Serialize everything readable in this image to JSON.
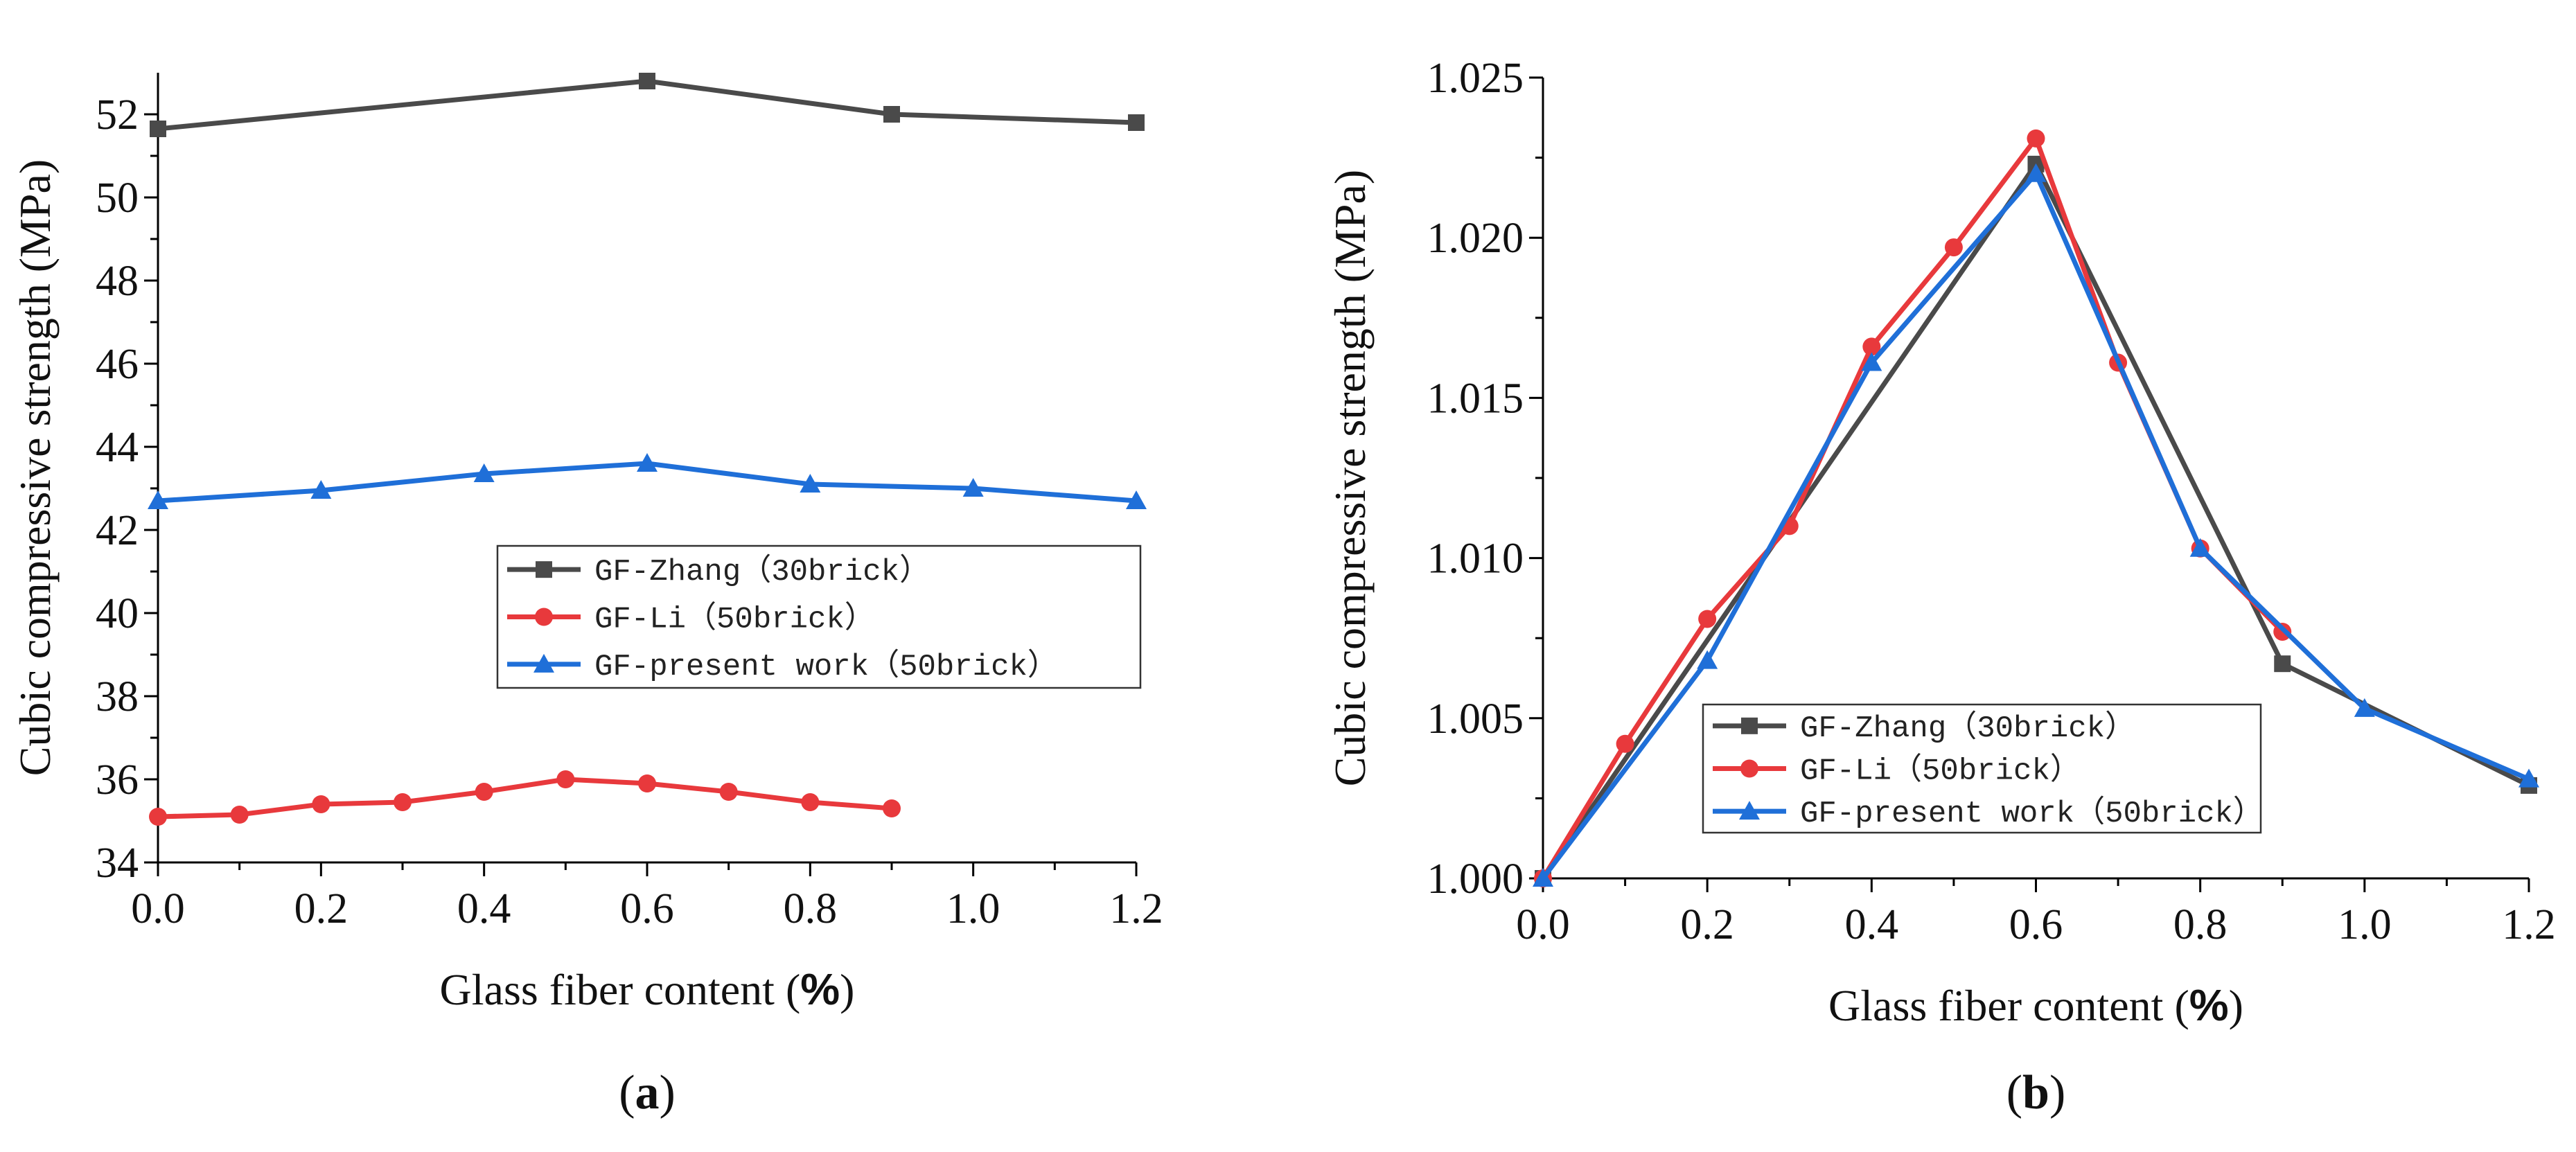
{
  "colors": {
    "zhang": "#4a4a4a",
    "li": "#e8393c",
    "present": "#1f6fd8"
  },
  "chart_data": [
    {
      "type": "line",
      "panel_label": "a",
      "xlabel_prefix": "Glass fiber content (",
      "xlabel_unit": "%",
      "xlabel_suffix": ")",
      "ylabel": "Cubic compressive strength (MPa)",
      "xlim": [
        0.0,
        1.2
      ],
      "ylim": [
        34,
        53
      ],
      "xticks": [
        0.0,
        0.2,
        0.4,
        0.6,
        0.8,
        1.0,
        1.2
      ],
      "xtick_labels": [
        "0.0",
        "0.2",
        "0.4",
        "0.6",
        "0.8",
        "1.0",
        "1.2"
      ],
      "yticks": [
        34,
        36,
        38,
        40,
        42,
        44,
        46,
        48,
        50,
        52
      ],
      "ytick_labels": [
        "34",
        "36",
        "38",
        "40",
        "42",
        "44",
        "46",
        "48",
        "50",
        "52"
      ],
      "legend_position": "center-right",
      "series": [
        {
          "name": "GF-Zhang（30brick）",
          "color_key": "zhang",
          "marker": "square",
          "x": [
            0.0,
            0.6,
            0.9,
            1.2
          ],
          "y": [
            51.65,
            52.8,
            52.0,
            51.8
          ]
        },
        {
          "name": "GF-Li（50brick）",
          "color_key": "li",
          "marker": "circle",
          "x": [
            0.0,
            0.1,
            0.2,
            0.3,
            0.4,
            0.5,
            0.6,
            0.7,
            0.8,
            0.9
          ],
          "y": [
            35.1,
            35.15,
            35.4,
            35.45,
            35.7,
            36.0,
            35.9,
            35.7,
            35.45,
            35.3
          ]
        },
        {
          "name": "GF-present work（50brick）",
          "color_key": "present",
          "marker": "triangle",
          "x": [
            0.0,
            0.2,
            0.4,
            0.6,
            0.8,
            1.0,
            1.2
          ],
          "y": [
            42.7,
            42.95,
            43.35,
            43.6,
            43.1,
            43.0,
            42.7
          ]
        }
      ]
    },
    {
      "type": "line",
      "panel_label": "b",
      "xlabel_prefix": "Glass fiber content (",
      "xlabel_unit": "%",
      "xlabel_suffix": ")",
      "ylabel": "Cubic compressive strength (MPa)",
      "xlim": [
        0.0,
        1.2
      ],
      "ylim": [
        1.0,
        1.025
      ],
      "xticks": [
        0.0,
        0.2,
        0.4,
        0.6,
        0.8,
        1.0,
        1.2
      ],
      "xtick_labels": [
        "0.0",
        "0.2",
        "0.4",
        "0.6",
        "0.8",
        "1.0",
        "1.2"
      ],
      "yticks": [
        1.0,
        1.005,
        1.01,
        1.015,
        1.02,
        1.025
      ],
      "ytick_labels": [
        "1.000",
        "1.005",
        "1.010",
        "1.015",
        "1.020",
        "1.025"
      ],
      "legend_position": "bottom-left",
      "series": [
        {
          "name": "GF-Zhang（30brick）",
          "color_key": "zhang",
          "marker": "square",
          "x": [
            0.0,
            0.6,
            0.9,
            1.2
          ],
          "y": [
            1.0,
            1.0223,
            1.0067,
            1.0029
          ]
        },
        {
          "name": "GF-Li（50brick）",
          "color_key": "li",
          "marker": "circle",
          "x": [
            0.0,
            0.1,
            0.2,
            0.3,
            0.4,
            0.5,
            0.6,
            0.7,
            0.8,
            0.9
          ],
          "y": [
            1.0,
            1.0042,
            1.0081,
            1.011,
            1.0166,
            1.0197,
            1.0231,
            1.0161,
            1.0103,
            1.0077
          ]
        },
        {
          "name": "GF-present work（50brick）",
          "color_key": "present",
          "marker": "triangle",
          "x": [
            0.0,
            0.2,
            0.4,
            0.6,
            0.8,
            1.0,
            1.2
          ],
          "y": [
            1.0,
            1.0068,
            1.0161,
            1.022,
            1.0103,
            1.0053,
            1.0031
          ]
        }
      ]
    }
  ]
}
